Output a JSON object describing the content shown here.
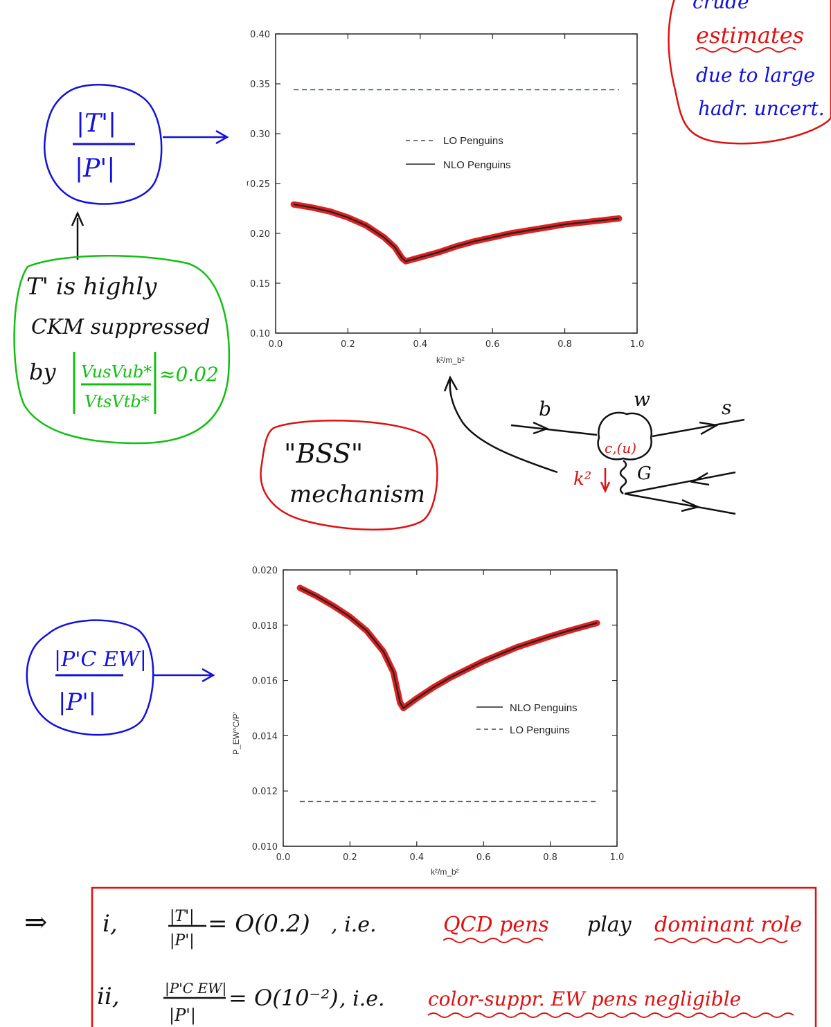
{
  "chart_data": [
    {
      "type": "line",
      "xlabel": "k²/m_b²",
      "ylabel": "r",
      "xlim": [
        0.0,
        1.0
      ],
      "ylim": [
        0.1,
        0.4
      ],
      "x_ticks": [
        "0.0",
        "0.2",
        "0.4",
        "0.6",
        "0.8",
        "1.0"
      ],
      "y_ticks": [
        "0.10",
        "0.15",
        "0.20",
        "0.25",
        "0.30",
        "0.35",
        "0.40"
      ],
      "legend": [
        "LO Penguins",
        "NLO Penguins"
      ],
      "series": [
        {
          "name": "LO Penguins",
          "style": "dashed",
          "x": [
            0.05,
            0.95
          ],
          "y": [
            0.344,
            0.344
          ]
        },
        {
          "name": "NLO Penguins",
          "style": "solid",
          "highlight": "#e02020",
          "x": [
            0.05,
            0.1,
            0.15,
            0.2,
            0.25,
            0.3,
            0.33,
            0.35,
            0.36,
            0.4,
            0.45,
            0.5,
            0.55,
            0.6,
            0.65,
            0.7,
            0.75,
            0.8,
            0.85,
            0.9,
            0.95
          ],
          "y": [
            0.229,
            0.226,
            0.222,
            0.216,
            0.208,
            0.196,
            0.186,
            0.175,
            0.172,
            0.176,
            0.181,
            0.187,
            0.192,
            0.196,
            0.2,
            0.203,
            0.206,
            0.209,
            0.211,
            0.213,
            0.215
          ]
        }
      ]
    },
    {
      "type": "line",
      "xlabel": "k²/m_b²",
      "ylabel": "P_EW^C/P'",
      "xlim": [
        0.0,
        1.0
      ],
      "ylim": [
        0.01,
        0.02
      ],
      "x_ticks": [
        "0.0",
        "0.2",
        "0.4",
        "0.6",
        "0.8",
        "1.0"
      ],
      "y_ticks": [
        "0.010",
        "0.012",
        "0.014",
        "0.016",
        "0.018",
        "0.020"
      ],
      "legend": [
        "NLO Penguins",
        "LO Penguins"
      ],
      "series": [
        {
          "name": "NLO Penguins",
          "style": "solid",
          "highlight": "#e02020",
          "x": [
            0.05,
            0.1,
            0.15,
            0.2,
            0.25,
            0.3,
            0.33,
            0.35,
            0.36,
            0.4,
            0.45,
            0.5,
            0.55,
            0.6,
            0.65,
            0.7,
            0.75,
            0.8,
            0.85,
            0.9,
            0.94
          ],
          "y": [
            0.01935,
            0.01905,
            0.0187,
            0.0183,
            0.0178,
            0.01705,
            0.0163,
            0.0152,
            0.015,
            0.01535,
            0.01575,
            0.0161,
            0.0164,
            0.0167,
            0.01695,
            0.0172,
            0.0174,
            0.0176,
            0.01778,
            0.01795,
            0.01808
          ]
        },
        {
          "name": "LO Penguins",
          "style": "dashed",
          "x": [
            0.05,
            0.94
          ],
          "y": [
            0.01162,
            0.01162
          ]
        }
      ]
    }
  ],
  "notes": {
    "topright": [
      "crude",
      "estimates",
      "due to large",
      "hadr. uncert."
    ],
    "t_ratio_num": "|T'|",
    "t_ratio_den": "|P'|",
    "green": [
      "T' is highly",
      "CKM suppressed",
      "by",
      "VusVub*",
      "VtsVtb*",
      "≈0.02"
    ],
    "bss": [
      "\"BSS\"",
      "mechanism"
    ],
    "pew_num": "|P'C EW|",
    "pew_den": "|P'|",
    "feynman": {
      "b": "b",
      "w": "w",
      "s": "s",
      "loop": "c,(u)",
      "gluon": "G",
      "k2": "k²"
    }
  },
  "summary": {
    "arrow": "⇒",
    "line1": {
      "index": "i,",
      "formula_num": "|T'|",
      "formula_den": "|P'|",
      "formula_rhs": "= O(0.2)",
      "ie": ", i.e.",
      "red1": "QCD pens",
      "black": "play",
      "red2": "dominant role"
    },
    "line2": {
      "index": "ii,",
      "formula_num": "|P'C EW|",
      "formula_den": "|P'|",
      "formula_rhs": "= O(10⁻²)",
      "ie": ", i.e.",
      "red1": "color-suppr. EW pens negligible"
    }
  },
  "colors": {
    "note_blue": "#1010e0",
    "note_red": "#e01010",
    "note_green": "#10c010",
    "highlight": "#e02020",
    "dashed": "#3a5a5a"
  }
}
